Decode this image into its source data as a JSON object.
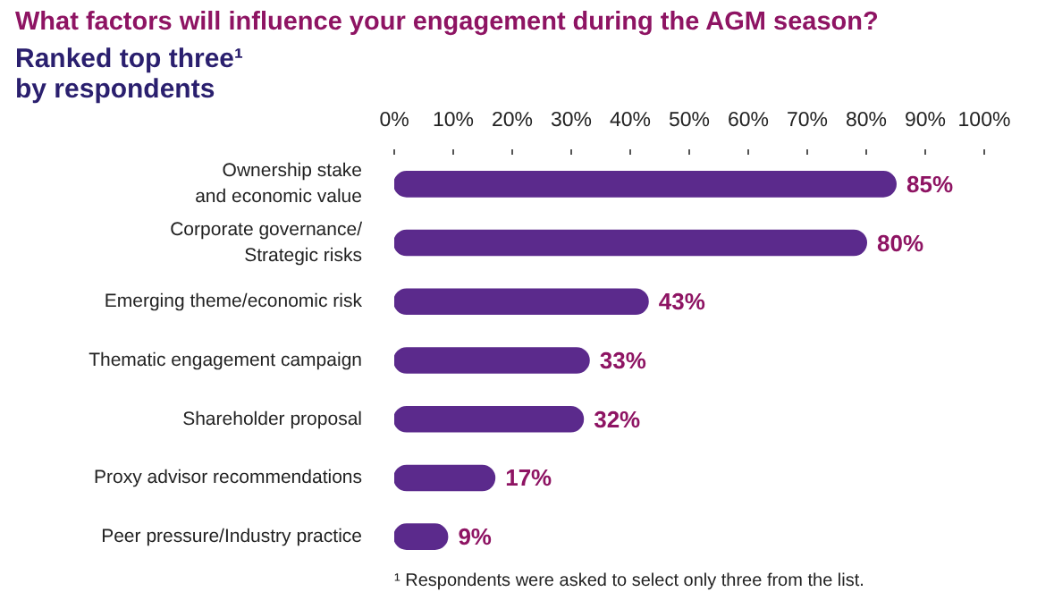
{
  "chart_data": {
    "type": "bar",
    "orientation": "horizontal",
    "title": "What factors will influence your engagement during the AGM season?",
    "subtitle": "Ranked top three¹\nby respondents",
    "categories": [
      "Ownership stake\nand economic value",
      "Corporate governance/\nStrategic risks",
      "Emerging theme/economic risk",
      "Thematic engagement campaign",
      "Shareholder proposal",
      "Proxy advisor recommendations",
      "Peer pressure/Industry practice"
    ],
    "values": [
      85,
      80,
      43,
      33,
      32,
      17,
      9
    ],
    "color": "#5b2a8c",
    "xlim": [
      0,
      100
    ],
    "xticks": [
      {
        "value": 0,
        "label": "0%"
      },
      {
        "value": 10,
        "label": "10%"
      },
      {
        "value": 20,
        "label": "20%"
      },
      {
        "value": 30,
        "label": "30%"
      },
      {
        "value": 40,
        "label": "40%"
      },
      {
        "value": 50,
        "label": "50%"
      },
      {
        "value": 60,
        "label": "60%"
      },
      {
        "value": 70,
        "label": "70%"
      },
      {
        "value": 80,
        "label": "80%"
      },
      {
        "value": 90,
        "label": "90%"
      },
      {
        "value": 100,
        "label": "100%"
      }
    ],
    "value_labels": [
      "85%",
      "80%",
      "43%",
      "33%",
      "32%",
      "17%",
      "9%"
    ],
    "annotations": [
      "¹ Respondents were asked to select only three from the list."
    ]
  }
}
